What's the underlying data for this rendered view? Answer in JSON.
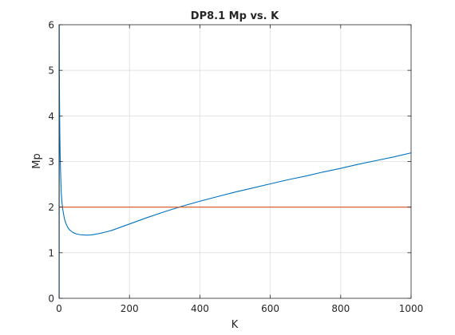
{
  "chart_data": {
    "type": "line",
    "title": "DP8.1 Mp vs. K",
    "xlabel": "K",
    "ylabel": "Mp",
    "xlim": [
      0,
      1000
    ],
    "ylim": [
      0,
      6
    ],
    "xticks": [
      0,
      200,
      400,
      600,
      800,
      1000
    ],
    "yticks": [
      0,
      1,
      2,
      3,
      4,
      5,
      6
    ],
    "grid": true,
    "series": [
      {
        "color": "#0072BD",
        "x": [
          0.3,
          0.5,
          1,
          2,
          3,
          4,
          5,
          6,
          8,
          10,
          12,
          15,
          20,
          25,
          30,
          40,
          50,
          60,
          70,
          80,
          90,
          100,
          120,
          140,
          150,
          175,
          200,
          250,
          300,
          350,
          400,
          450,
          500,
          550,
          600,
          650,
          700,
          750,
          800,
          850,
          900,
          950,
          1000
        ],
        "y": [
          0.0,
          6.0,
          4.6,
          3.7,
          3.2,
          2.85,
          2.6,
          2.35,
          2.12,
          1.98,
          1.88,
          1.75,
          1.63,
          1.55,
          1.5,
          1.44,
          1.41,
          1.395,
          1.39,
          1.385,
          1.39,
          1.4,
          1.43,
          1.47,
          1.49,
          1.56,
          1.63,
          1.77,
          1.9,
          2.02,
          2.13,
          2.23,
          2.33,
          2.42,
          2.51,
          2.6,
          2.68,
          2.77,
          2.85,
          2.94,
          3.02,
          3.1,
          3.19
        ]
      },
      {
        "color": "#D95319",
        "x": [
          0,
          1000
        ],
        "y": [
          2,
          2
        ]
      }
    ]
  }
}
